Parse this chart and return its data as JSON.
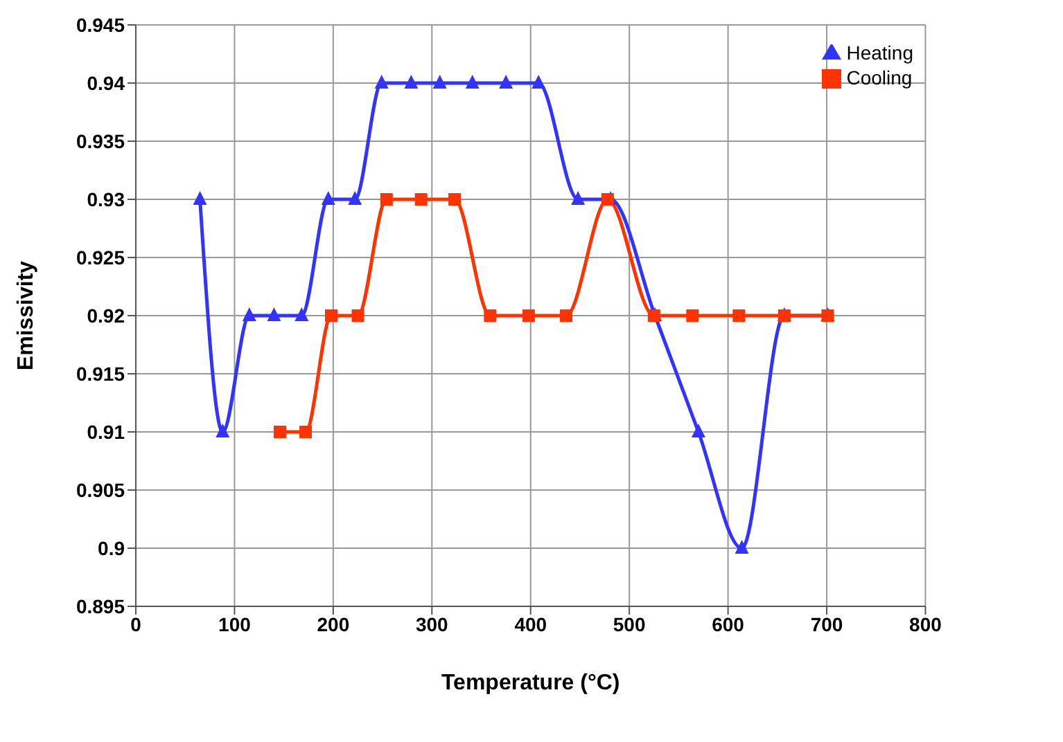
{
  "chart_data": {
    "type": "line",
    "xlabel": "Temperature (°C)",
    "ylabel": "Emissivity",
    "xlim": [
      0,
      800
    ],
    "xticks": [
      0,
      100,
      200,
      300,
      400,
      500,
      600,
      700,
      800
    ],
    "ylim": [
      0.895,
      0.945
    ],
    "yticks": [
      0.895,
      0.9,
      0.905,
      0.91,
      0.915,
      0.92,
      0.925,
      0.93,
      0.935,
      0.94,
      0.945
    ],
    "grid": true,
    "legend": "top right",
    "line_style": "solid",
    "series": [
      {
        "name": "Heating",
        "color": "#3333ff",
        "marker": "triangle",
        "x": [
          65,
          88,
          115,
          140,
          168,
          195,
          222,
          249,
          279,
          308,
          341,
          375,
          408,
          448,
          481,
          526,
          570,
          614,
          657,
          701
        ],
        "values": [
          0.93,
          0.91,
          0.92,
          0.92,
          0.92,
          0.93,
          0.93,
          0.94,
          0.94,
          0.94,
          0.94,
          0.94,
          0.94,
          0.93,
          0.93,
          0.92,
          0.91,
          0.9,
          0.92,
          0.92
        ]
      },
      {
        "name": "Cooling",
        "color": "#ff3300",
        "marker": "square",
        "x": [
          146,
          172,
          198,
          225,
          254,
          289,
          323,
          359,
          398,
          436,
          478,
          525,
          564,
          611,
          657,
          701
        ],
        "values": [
          0.91,
          0.91,
          0.92,
          0.92,
          0.93,
          0.93,
          0.93,
          0.92,
          0.92,
          0.92,
          0.93,
          0.92,
          0.92,
          0.92,
          0.92,
          0.92
        ]
      }
    ]
  }
}
